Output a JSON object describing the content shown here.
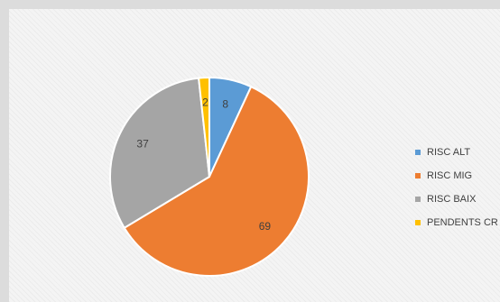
{
  "chart_data": {
    "type": "pie",
    "categories": [
      "RISC ALT",
      "RISC MIG",
      "RISC BAIX",
      "PENDENTS CR"
    ],
    "values": [
      8,
      69,
      37,
      2
    ],
    "colors": [
      "#5b9bd5",
      "#ed7d31",
      "#a5a5a5",
      "#ffc000"
    ],
    "data_labels": [
      "8",
      "69",
      "37",
      "2"
    ],
    "start_angle_deg": 0,
    "direction": "clockwise",
    "legend_position": "right",
    "title": ""
  }
}
